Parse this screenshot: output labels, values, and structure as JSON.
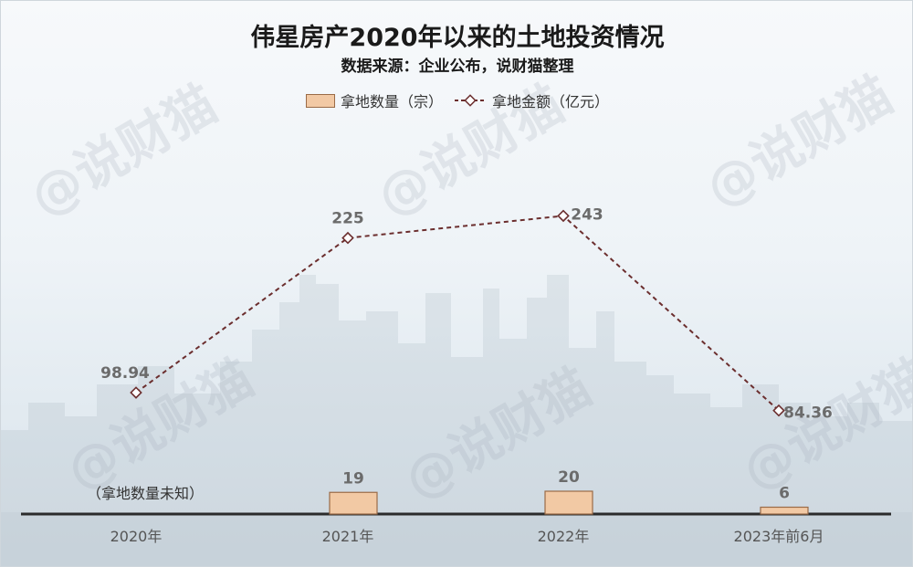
{
  "title": "伟星房产2020年以来的土地投资情况",
  "subtitle": "数据来源：企业公布，说财猫整理",
  "watermark": "@说财猫",
  "legend": {
    "bar_label": "拿地数量（宗）",
    "line_label": "拿地金额（亿元）"
  },
  "colors": {
    "bar_fill": "#f2c9a4",
    "bar_stroke": "#9a6b47",
    "line": "#6b2e2e",
    "label": "#6b6b6b",
    "axis": "#2b2b2b"
  },
  "chart_data": {
    "type": "bar+line",
    "categories": [
      "2020年",
      "2021年",
      "2022年",
      "2023年前6月"
    ],
    "series": [
      {
        "name": "拿地数量（宗）",
        "type": "bar",
        "values": [
          null,
          19,
          20,
          6
        ],
        "labels": [
          "",
          "19",
          "20",
          "6"
        ]
      },
      {
        "name": "拿地金额（亿元）",
        "type": "line",
        "values": [
          98.94,
          225,
          243,
          84.36
        ],
        "labels": [
          "98.94",
          "225",
          "243",
          "84.36"
        ]
      }
    ],
    "annotations": [
      "（拿地数量未知）"
    ],
    "y_bar_range": [
      0,
      250
    ],
    "y_line_range": [
      0,
      300
    ],
    "grid": false,
    "legend_position": "top-center"
  }
}
